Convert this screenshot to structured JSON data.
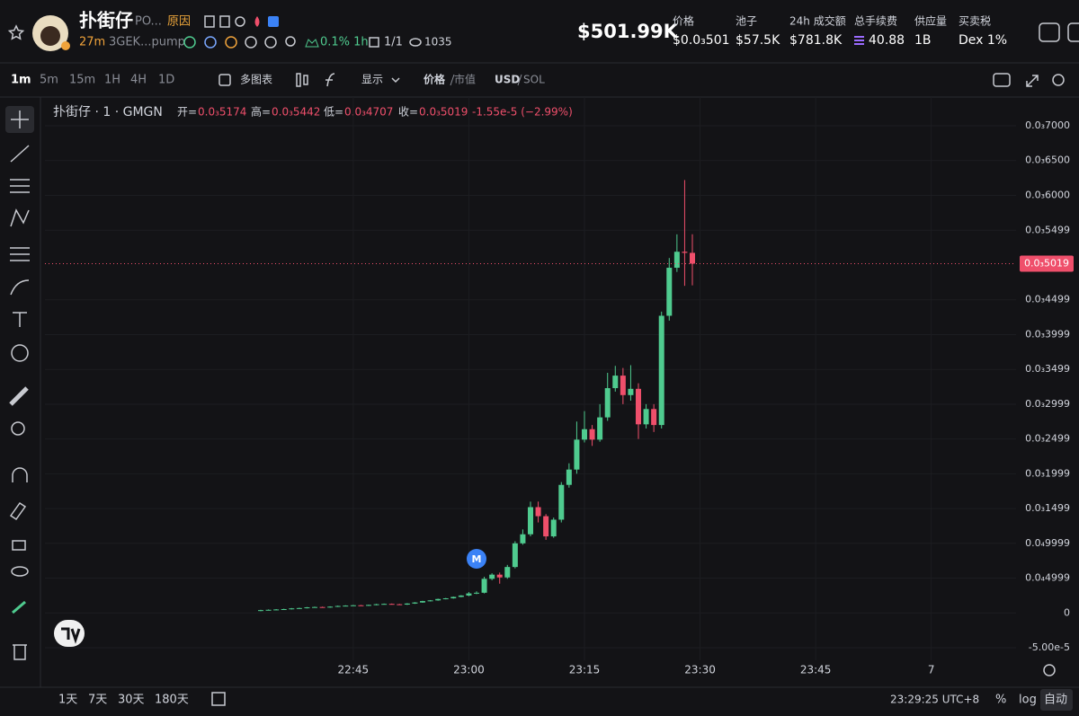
{
  "header": {
    "name": "扑街仔",
    "ticker": "PO...",
    "reason": "原因",
    "age": "27m",
    "address": "3GEK...pump",
    "change_1h": "0.1% 1h",
    "ratio": "1/1",
    "views": "1035",
    "market_cap": "$501.99K"
  },
  "stats": [
    {
      "label": "价格",
      "value": "$0.0₃501"
    },
    {
      "label": "池子",
      "value": "$57.5K"
    },
    {
      "label": "24h 成交额",
      "value": "$781.8K"
    },
    {
      "label": "总手续费",
      "value": "40.88"
    },
    {
      "label": "供应量",
      "value": "1B"
    },
    {
      "label": "买卖税",
      "value": "Dex 1%"
    }
  ],
  "toolbar": {
    "intervals": [
      "1m",
      "5m",
      "15m",
      "1H",
      "4H",
      "1D"
    ],
    "multi_chart": "多图表",
    "display": "显示",
    "price": "价格",
    "market_value": "市值",
    "usd": "USD",
    "sol": "SOL"
  },
  "legend": {
    "title": "扑街仔 · 1 · GMGN",
    "open_label": "开=",
    "open": "0.0₃5174",
    "high_label": "高=",
    "high": "0.0₃5442",
    "low_label": "低=",
    "low": "0.0₃4707",
    "close_label": "收=",
    "close": "0.0₃5019",
    "change": "-1.55e-5 (−2.99%)"
  },
  "chart_data": {
    "type": "candlestick",
    "up_color": "#4fcb8f",
    "down_color": "#ef4f6b",
    "grid": true,
    "x": [
      "22:33",
      "22:34",
      "22:35",
      "22:36",
      "22:37",
      "22:38",
      "22:39",
      "22:40",
      "22:41",
      "22:42",
      "22:43",
      "22:44",
      "22:45",
      "22:46",
      "22:47",
      "22:48",
      "22:49",
      "22:50",
      "22:51",
      "22:52",
      "22:53",
      "22:54",
      "22:55",
      "22:56",
      "22:57",
      "22:58",
      "22:59",
      "23:00",
      "23:01",
      "23:02",
      "23:03",
      "23:04",
      "23:05",
      "23:06",
      "23:07",
      "23:08",
      "23:09",
      "23:10",
      "23:11",
      "23:12",
      "23:13",
      "23:14",
      "23:15",
      "23:16",
      "23:17",
      "23:18",
      "23:19",
      "23:20",
      "23:21",
      "23:22",
      "23:23",
      "23:24",
      "23:25",
      "23:26",
      "23:27",
      "23:28",
      "23:29"
    ],
    "open": [
      3e-06,
      4e-06,
      4.5e-06,
      5e-06,
      5.5e-06,
      6.5e-06,
      7e-06,
      8e-06,
      8.5e-06,
      8e-06,
      9e-06,
      1e-05,
      1.05e-05,
      1.1e-05,
      1.05e-05,
      1.15e-05,
      1.25e-05,
      1.3e-05,
      1.25e-05,
      1.2e-05,
      1.35e-05,
      1.5e-05,
      1.7e-05,
      1.8e-05,
      2e-05,
      2.1e-05,
      2.3e-05,
      2.5e-05,
      2.8e-05,
      2.9e-05,
      4.9e-05,
      5.5e-05,
      5.1e-05,
      6.6e-05,
      0.0001,
      0.000113,
      0.000152,
      0.000139,
      0.00011,
      0.000134,
      0.000184,
      0.000206,
      0.000249,
      0.000264,
      0.000249,
      0.000281,
      0.000323,
      0.000341,
      0.000313,
      0.000322,
      0.000271,
      0.000293,
      0.00027,
      0.000427,
      0.000496,
      0.000519,
      0.0005174
    ],
    "high": [
      4.5e-06,
      5e-06,
      5.5e-06,
      6e-06,
      7e-06,
      7.5e-06,
      8.5e-06,
      9e-06,
      9e-06,
      9.5e-06,
      1.05e-05,
      1.1e-05,
      1.15e-05,
      1.15e-05,
      1.2e-05,
      1.3e-05,
      1.35e-05,
      1.35e-05,
      1.3e-05,
      1.4e-05,
      1.55e-05,
      1.75e-05,
      1.85e-05,
      2.05e-05,
      2.15e-05,
      2.35e-05,
      2.55e-05,
      3e-05,
      3.1e-05,
      5.2e-05,
      5.7e-05,
      5.8e-05,
      6.9e-05,
      0.000103,
      0.00012,
      0.00016,
      0.00016,
      0.000142,
      0.000137,
      0.000188,
      0.000215,
      0.000275,
      0.00029,
      0.00027,
      0.0003,
      0.000345,
      0.000355,
      0.000352,
      0.000356,
      0.00033,
      0.0003,
      0.0003,
      0.000433,
      0.00051,
      0.000544,
      0.000622,
      0.0005442
    ],
    "low": [
      2.5e-06,
      3.5e-06,
      4e-06,
      4.5e-06,
      5e-06,
      6e-06,
      6.5e-06,
      7.5e-06,
      7.5e-06,
      7.5e-06,
      8.5e-06,
      9.5e-06,
      1e-05,
      1e-05,
      1e-05,
      1.1e-05,
      1.2e-05,
      1.2e-05,
      1.15e-05,
      1.15e-05,
      1.3e-05,
      1.45e-05,
      1.65e-05,
      1.75e-05,
      1.95e-05,
      2.05e-05,
      2.25e-05,
      2.4e-05,
      2.7e-05,
      2.8e-05,
      4.7e-05,
      4.2e-05,
      4.9e-05,
      6.4e-05,
      9.8e-05,
      0.00011,
      0.00013,
      0.000105,
      0.000108,
      0.00013,
      0.00018,
      0.0002,
      0.000245,
      0.00024,
      0.000246,
      0.000276,
      0.000318,
      0.0003,
      0.000305,
      0.00025,
      0.000265,
      0.00026,
      0.000265,
      0.00042,
      0.00049,
      0.00047,
      0.0004707
    ],
    "close": [
      4e-06,
      4.5e-06,
      5e-06,
      5.5e-06,
      6.5e-06,
      7e-06,
      8e-06,
      8.5e-06,
      8e-06,
      9e-06,
      1e-05,
      1.05e-05,
      1.1e-05,
      1.05e-05,
      1.15e-05,
      1.25e-05,
      1.3e-05,
      1.25e-05,
      1.2e-05,
      1.35e-05,
      1.5e-05,
      1.7e-05,
      1.8e-05,
      2e-05,
      2.1e-05,
      2.3e-05,
      2.5e-05,
      2.8e-05,
      2.9e-05,
      4.9e-05,
      5.5e-05,
      5.1e-05,
      6.6e-05,
      0.0001,
      0.000113,
      0.000152,
      0.000139,
      0.00011,
      0.000134,
      0.000184,
      0.000206,
      0.000249,
      0.000264,
      0.000249,
      0.000281,
      0.000323,
      0.000341,
      0.000313,
      0.000322,
      0.000271,
      0.000293,
      0.00027,
      0.000427,
      0.000496,
      0.000519,
      0.0005174,
      0.0005019
    ],
    "xlim": [
      "22:05",
      "00:11"
    ],
    "xticks": [
      {
        "value": "22:45",
        "label": "22:45"
      },
      {
        "value": "23:00",
        "label": "23:00"
      },
      {
        "value": "23:15",
        "label": "23:15"
      },
      {
        "value": "23:30",
        "label": "23:30"
      },
      {
        "value": "23:45",
        "label": "23:45"
      },
      {
        "value": "00:00",
        "label": "7"
      }
    ],
    "ylim": [
      -5e-05,
      0.0007
    ],
    "yticks": [
      {
        "value": -5e-05,
        "label": "-5.00e-5"
      },
      0,
      {
        "value": 4.999e-05,
        "label": "0.0₄4999"
      },
      {
        "value": 9.999e-05,
        "label": "0.0₄9999"
      },
      {
        "value": 0.0001499,
        "label": "0.0₃1499"
      },
      {
        "value": 0.0001999,
        "label": "0.0₃1999"
      },
      {
        "value": 0.0002499,
        "label": "0.0₃2499"
      },
      {
        "value": 0.0002999,
        "label": "0.0₃2999"
      },
      {
        "value": 0.0003499,
        "label": "0.0₃3499"
      },
      {
        "value": 0.0003999,
        "label": "0.0₃3999"
      },
      {
        "value": 0.0004499,
        "label": "0.0₃4499"
      },
      {
        "value": 0.0005499,
        "label": "0.0₃5499"
      },
      {
        "value": 0.0006,
        "label": "0.0₃6000"
      },
      {
        "value": 0.00065,
        "label": "0.0₃6500"
      },
      {
        "value": 0.0007,
        "label": "0.0₃7000"
      }
    ],
    "last_price": {
      "value": 0.0005019,
      "label": "0.0₃5019"
    },
    "annotations": [
      {
        "x": "23:01",
        "label": "M"
      }
    ]
  },
  "footer": {
    "ranges": [
      "1天",
      "7天",
      "30天",
      "180天"
    ],
    "clock": "23:29:25 UTC+8",
    "percent": "%",
    "log": "log",
    "auto": "自动"
  }
}
